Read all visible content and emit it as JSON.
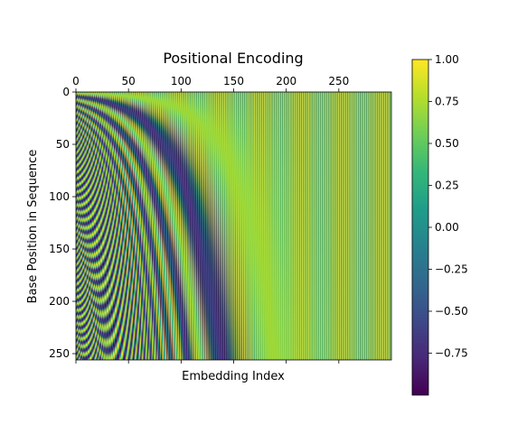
{
  "chart_data": {
    "type": "heatmap",
    "title": "Positional Encoding",
    "xlabel": "Embedding Index",
    "ylabel": "Base Position in Sequence",
    "x_range": [
      0,
      300
    ],
    "y_range": [
      0,
      256
    ],
    "x_ticks": [
      0,
      50,
      100,
      150,
      200,
      250
    ],
    "x_tick_labels": [
      "0",
      "50",
      "100",
      "150",
      "200",
      "250"
    ],
    "x_ticks_position": "top",
    "y_ticks": [
      0,
      50,
      100,
      150,
      200,
      250
    ],
    "y_tick_labels": [
      "0",
      "50",
      "100",
      "150",
      "200",
      "250"
    ],
    "y_inverted": true,
    "colormap": "viridis",
    "value_range": [
      -1,
      1
    ],
    "encoding": {
      "d_model": 300,
      "base": 10000,
      "even_index": "sin",
      "odd_index": "cos"
    },
    "colorbar": {
      "ticks": [
        1.0,
        0.75,
        0.5,
        0.25,
        0.0,
        -0.25,
        -0.5,
        -0.75
      ],
      "tick_labels": [
        "1.00",
        "0.75",
        "0.50",
        "0.25",
        "0.00",
        "−0.25",
        "−0.50",
        "−0.75"
      ]
    },
    "grid": false
  }
}
